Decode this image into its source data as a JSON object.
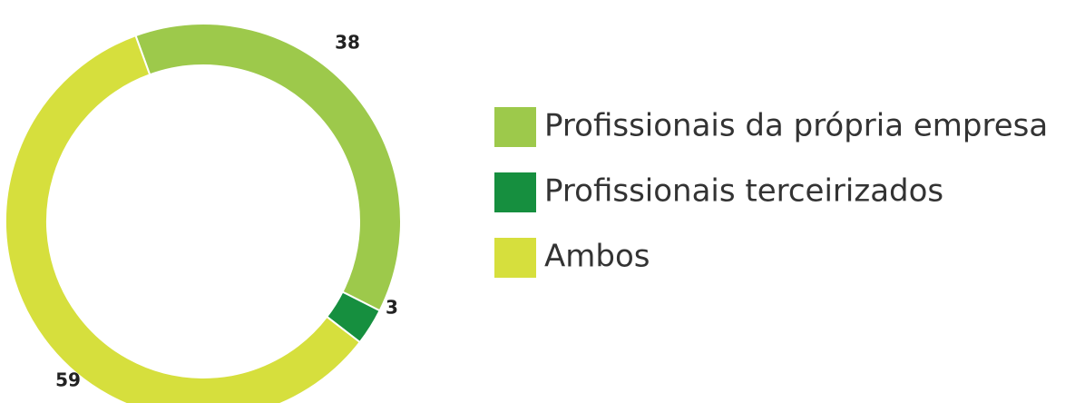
{
  "chart_data": {
    "type": "pie",
    "categories": [
      "Profissionais da própria empresa",
      "Profissionais terceirizados",
      "Ambos"
    ],
    "values": [
      38,
      3,
      59
    ],
    "colors": [
      "#9dc94b",
      "#168f3f",
      "#d6df3d"
    ]
  }
}
